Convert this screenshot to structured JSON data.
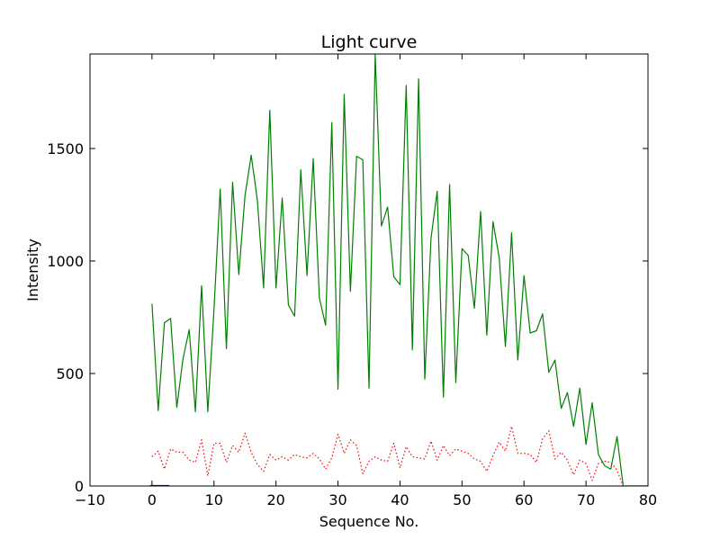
{
  "chart_data": {
    "type": "line",
    "title": "Light curve",
    "xlabel": "Sequence No.",
    "ylabel": "Intensity",
    "xlim": [
      -10,
      80
    ],
    "ylim": [
      0,
      1920
    ],
    "xticks": [
      -10,
      0,
      10,
      20,
      30,
      40,
      50,
      60,
      70,
      80
    ],
    "yticks": [
      0,
      500,
      1000,
      1500
    ],
    "grid": false,
    "legend": "none",
    "series": [
      {
        "color": "#008000",
        "linestyle": "solid",
        "x": [
          0,
          1,
          2,
          3,
          4,
          5,
          6,
          7,
          8,
          9,
          10,
          11,
          12,
          13,
          14,
          15,
          16,
          17,
          18,
          19,
          20,
          21,
          22,
          23,
          24,
          25,
          26,
          27,
          28,
          29,
          30,
          31,
          32,
          33,
          34,
          35,
          36,
          37,
          38,
          39,
          40,
          41,
          42,
          43,
          44,
          45,
          46,
          47,
          48,
          49,
          50,
          51,
          52,
          53,
          54,
          55,
          56,
          57,
          58,
          59,
          60,
          61,
          62,
          63,
          64,
          65,
          66,
          67,
          68,
          69,
          70,
          71,
          72,
          73,
          74,
          75,
          76,
          77,
          78,
          79,
          80
        ],
        "y": [
          810,
          335,
          725,
          745,
          350,
          565,
          695,
          330,
          890,
          330,
          785,
          1320,
          610,
          1350,
          940,
          1290,
          1470,
          1270,
          880,
          1670,
          880,
          1280,
          805,
          755,
          1405,
          935,
          1455,
          835,
          715,
          1615,
          430,
          1740,
          865,
          1465,
          1450,
          435,
          1920,
          1155,
          1240,
          930,
          895,
          1780,
          605,
          1810,
          475,
          1100,
          1310,
          395,
          1340,
          460,
          1055,
          1025,
          790,
          1220,
          670,
          1175,
          1015,
          620,
          1125,
          560,
          935,
          680,
          690,
          765,
          505,
          560,
          345,
          415,
          265,
          435,
          185,
          370,
          140,
          90,
          75,
          220,
          0,
          0,
          0,
          0,
          0
        ]
      },
      {
        "color": "#ff0000",
        "linestyle": "dotted",
        "x": [
          0,
          1,
          2,
          3,
          4,
          5,
          6,
          7,
          8,
          9,
          10,
          11,
          12,
          13,
          14,
          15,
          16,
          17,
          18,
          19,
          20,
          21,
          22,
          23,
          24,
          25,
          26,
          27,
          28,
          29,
          30,
          31,
          32,
          33,
          34,
          35,
          36,
          37,
          38,
          39,
          40,
          41,
          42,
          43,
          44,
          45,
          46,
          47,
          48,
          49,
          50,
          51,
          52,
          53,
          54,
          55,
          56,
          57,
          58,
          59,
          60,
          61,
          62,
          63,
          64,
          65,
          66,
          67,
          68,
          69,
          70,
          71,
          72,
          73,
          74,
          75,
          76,
          77,
          78,
          79,
          80
        ],
        "y": [
          130,
          155,
          75,
          165,
          150,
          150,
          115,
          105,
          205,
          45,
          190,
          190,
          105,
          180,
          150,
          235,
          150,
          95,
          65,
          140,
          115,
          130,
          115,
          140,
          130,
          125,
          145,
          120,
          75,
          125,
          230,
          145,
          205,
          180,
          55,
          110,
          130,
          115,
          110,
          190,
          80,
          175,
          130,
          125,
          120,
          200,
          115,
          180,
          135,
          165,
          155,
          145,
          120,
          110,
          65,
          135,
          195,
          155,
          265,
          145,
          145,
          140,
          105,
          210,
          245,
          120,
          150,
          115,
          50,
          115,
          100,
          25,
          100,
          110,
          105,
          70,
          0,
          0,
          0,
          0,
          0
        ]
      },
      {
        "color": "#0000ff",
        "linestyle": "solid",
        "x": [
          -0.3,
          2.8
        ],
        "y": [
          2,
          2
        ]
      }
    ]
  }
}
